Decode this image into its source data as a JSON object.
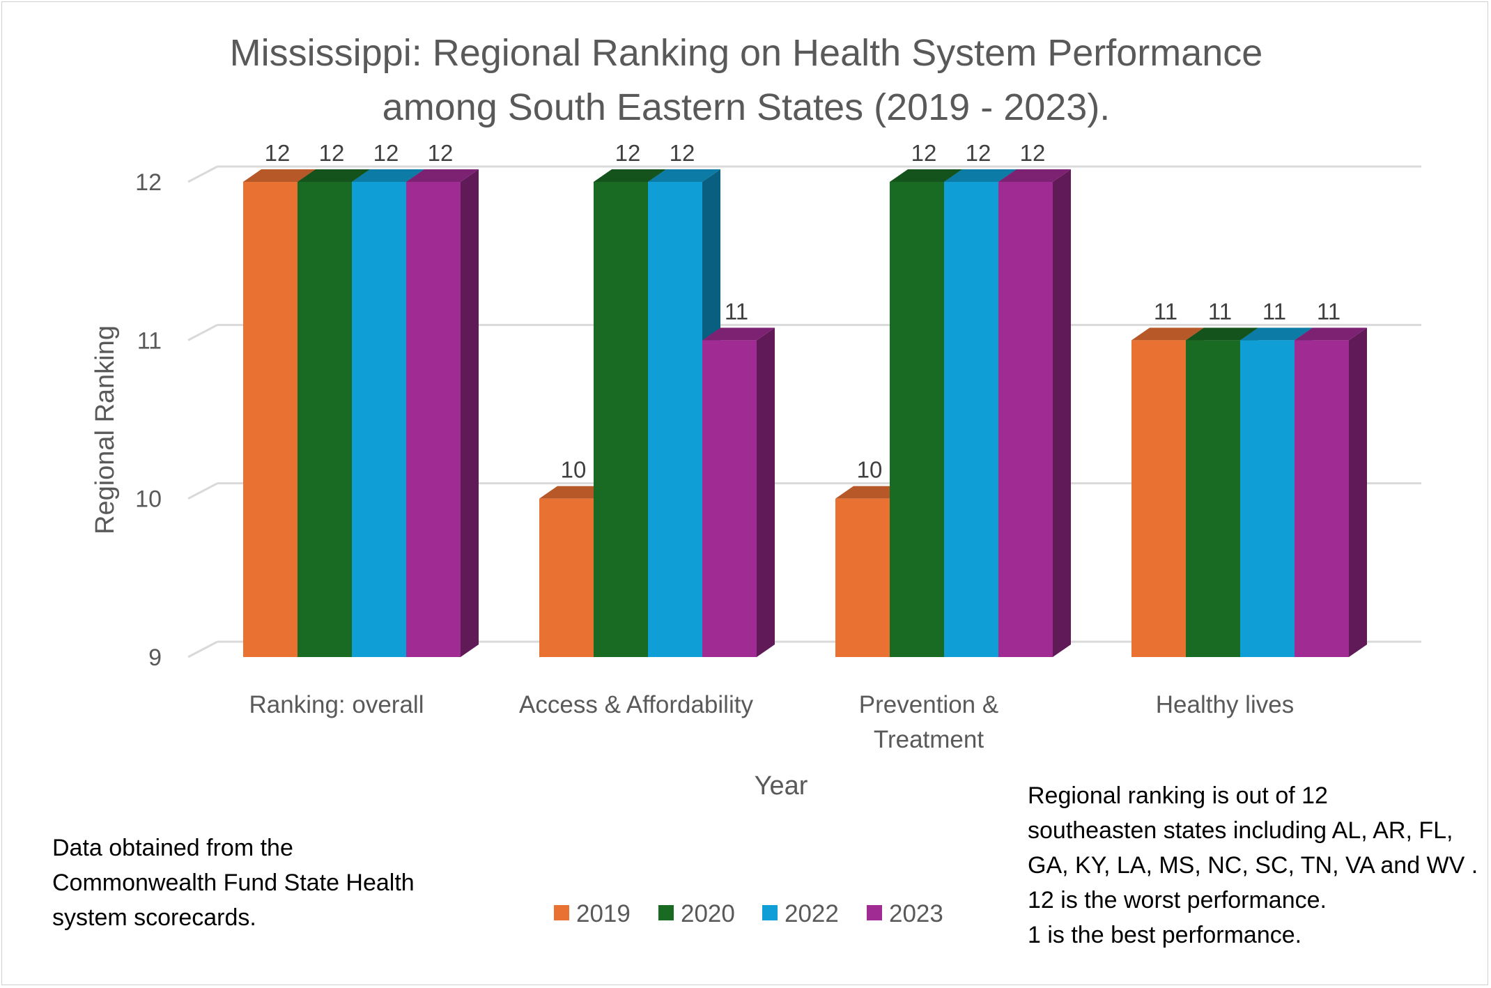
{
  "chart_data": {
    "type": "bar",
    "title_lines": [
      "Mississippi: Regional Ranking on Health System Performance",
      "among South Eastern States (2019 - 2023)."
    ],
    "xlabel": "Year",
    "ylabel": "Regional Ranking",
    "ylim": [
      9,
      12
    ],
    "yticks": [
      "9",
      "10",
      "11",
      "12"
    ],
    "categories": [
      [
        "Ranking: overall"
      ],
      [
        "Access & Affordability"
      ],
      [
        "Prevention &",
        "Treatment"
      ],
      [
        "Healthy lives"
      ]
    ],
    "series": [
      {
        "name": "2019",
        "color": "#E97132",
        "values": [
          12,
          10,
          10,
          11
        ]
      },
      {
        "name": "2020",
        "color": "#196B24",
        "values": [
          12,
          12,
          12,
          11
        ]
      },
      {
        "name": "2022",
        "color": "#0F9ED5",
        "values": [
          12,
          12,
          12,
          11
        ]
      },
      {
        "name": "2023",
        "color": "#A02B93",
        "values": [
          12,
          11,
          12,
          11
        ]
      }
    ],
    "legend_position": "bottom",
    "grid": true
  },
  "notes": {
    "source_lines": [
      "Data obtained from the",
      "Commonwealth Fund State Health",
      "system scorecards."
    ],
    "explanation_lines": [
      "Regional ranking is out of 12",
      "southeasten states including AL, AR, FL,",
      "GA, KY, LA, MS, NC, SC, TN, VA and WV .",
      "12  is the worst performance.",
      "1 is the best performance."
    ]
  }
}
